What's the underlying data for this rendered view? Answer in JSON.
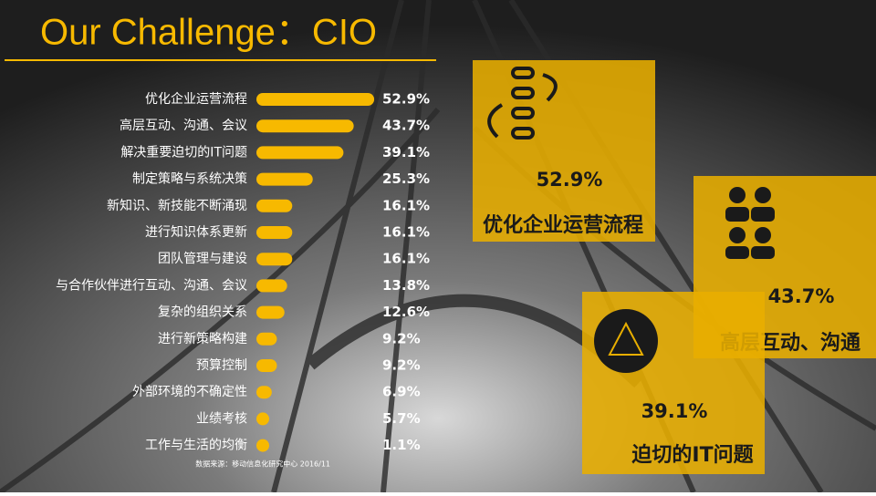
{
  "chart_data": {
    "type": "bar",
    "orientation": "horizontal",
    "title": "Our Challenge：CIO",
    "categories": [
      "优化企业运营流程",
      "高层互动、沟通、会议",
      "解决重要迫切的IT问题",
      "制定策略与系统决策",
      "新知识、新技能不断涌现",
      "进行知识体系更新",
      "团队管理与建设",
      "与合作伙伴进行互动、沟通、会议",
      "复杂的组织关系",
      "进行新策略构建",
      "预算控制",
      "外部环境的不确定性",
      "业绩考核",
      "工作与生活的均衡"
    ],
    "values": [
      52.9,
      43.7,
      39.1,
      25.3,
      16.1,
      16.1,
      16.1,
      13.8,
      12.6,
      9.2,
      9.2,
      6.9,
      5.7,
      1.1
    ],
    "value_labels": [
      "52.9%",
      "43.7%",
      "39.1%",
      "25.3%",
      "16.1%",
      "16.1%",
      "16.1%",
      "13.8%",
      "12.6%",
      "9.2%",
      "9.2%",
      "6.9%",
      "5.7%",
      "1.1%"
    ],
    "color": "#f7b900",
    "source": "数据来源：移动信息化研究中心  2016/11"
  },
  "highlights": [
    {
      "value": "52.9%",
      "label": "优化企业运营流程"
    },
    {
      "value": "43.7%",
      "label": "高层互动、沟通"
    },
    {
      "value": "39.1%",
      "label": "迫切的IT问题"
    }
  ]
}
